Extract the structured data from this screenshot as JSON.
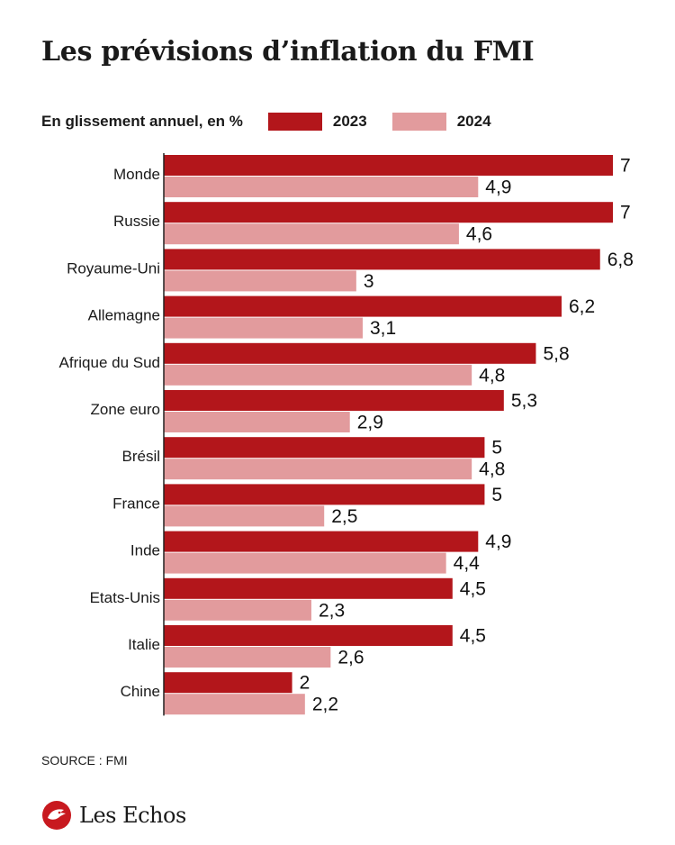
{
  "header": {
    "title": "Les prévisions d’inflation du FMI",
    "subtitle": "En glissement annuel, en %"
  },
  "colors": {
    "series_2023": "#b3161b",
    "series_2024": "#e29b9d",
    "axis": "#222222",
    "logo": "#c8191f"
  },
  "chart_data": {
    "type": "bar",
    "orientation": "horizontal",
    "categories": [
      "Monde",
      "Russie",
      "Royaume-Uni",
      "Allemagne",
      "Afrique du Sud",
      "Zone euro",
      "Brésil",
      "France",
      "Inde",
      "Etats-Unis",
      "Italie",
      "Chine"
    ],
    "series": [
      {
        "name": "2023",
        "values": [
          7,
          7,
          6.8,
          6.2,
          5.8,
          5.3,
          5,
          5,
          4.9,
          4.5,
          4.5,
          2
        ],
        "labels": [
          "7",
          "7",
          "6,8",
          "6,2",
          "5,8",
          "5,3",
          "5",
          "5",
          "4,9",
          "4,5",
          "4,5",
          "2"
        ]
      },
      {
        "name": "2024",
        "values": [
          4.9,
          4.6,
          3,
          3.1,
          4.8,
          2.9,
          4.8,
          2.5,
          4.4,
          2.3,
          2.6,
          2.2
        ],
        "labels": [
          "4,9",
          "4,6",
          "3",
          "3,1",
          "4,8",
          "2,9",
          "4,8",
          "2,5",
          "4,4",
          "2,3",
          "2,6",
          "2,2"
        ]
      }
    ],
    "xlim": [
      0,
      7
    ],
    "grid": false,
    "legend": "top"
  },
  "footer": {
    "source": "SOURCE : FMI",
    "logo_text": "Les Echos"
  }
}
